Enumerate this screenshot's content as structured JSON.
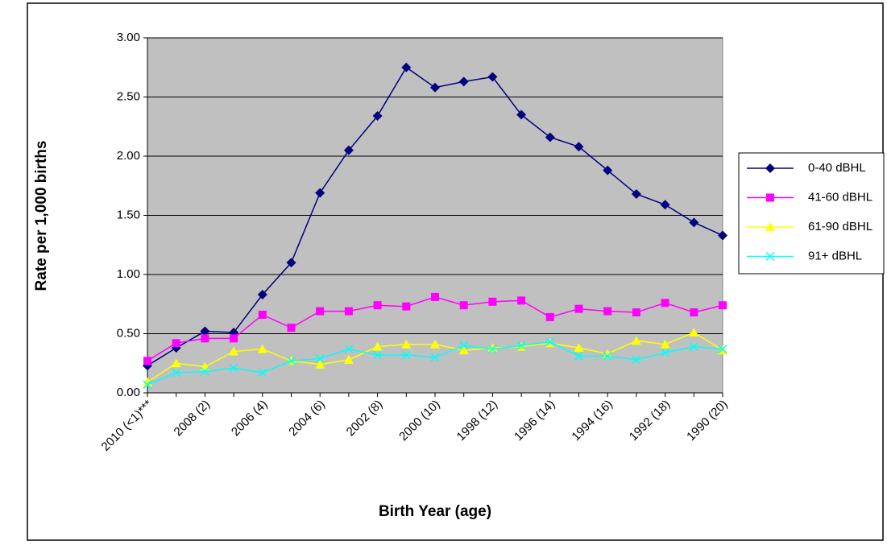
{
  "chart_data": {
    "type": "line",
    "x_label": "Birth Year (age)",
    "y_label": "Rate per 1,000 births",
    "categories": [
      "2010 (<1)***",
      null,
      "2008 (2)",
      null,
      "2006 (4)",
      null,
      "2004 (6)",
      null,
      "2002 (8)",
      null,
      "2000 (10)",
      null,
      "1998 (12)",
      null,
      "1996 (14)",
      null,
      "1994 (16)",
      null,
      "1992 (18)",
      null,
      "1990 (20)"
    ],
    "series": [
      {
        "name": "0-40 dBHL",
        "color": "#000080",
        "marker": "diamond",
        "values": [
          0.23,
          0.38,
          0.52,
          0.51,
          0.83,
          1.1,
          1.69,
          2.05,
          2.34,
          2.75,
          2.58,
          2.63,
          2.67,
          2.35,
          2.16,
          2.08,
          1.88,
          1.68,
          1.59,
          1.44,
          1.33
        ]
      },
      {
        "name": "41-60 dBHL",
        "color": "#FF00FF",
        "marker": "square",
        "values": [
          0.27,
          0.42,
          0.46,
          0.46,
          0.66,
          0.55,
          0.69,
          0.69,
          0.74,
          0.73,
          0.81,
          0.74,
          0.77,
          0.78,
          0.64,
          0.71,
          0.69,
          0.68,
          0.76,
          0.68,
          0.74
        ]
      },
      {
        "name": "61-90 dBHL",
        "color": "#FFFF00",
        "marker": "triangle",
        "values": [
          0.09,
          0.25,
          0.22,
          0.35,
          0.37,
          0.27,
          0.24,
          0.28,
          0.39,
          0.41,
          0.41,
          0.36,
          0.38,
          0.39,
          0.42,
          0.38,
          0.33,
          0.44,
          0.41,
          0.51,
          0.36
        ]
      },
      {
        "name": "91+ dBHL",
        "color": "#00FFFF",
        "marker": "x",
        "values": [
          0.07,
          0.17,
          0.18,
          0.21,
          0.17,
          0.27,
          0.29,
          0.37,
          0.32,
          0.32,
          0.3,
          0.4,
          0.37,
          0.4,
          0.43,
          0.31,
          0.31,
          0.28,
          0.34,
          0.39,
          0.37
        ]
      }
    ],
    "ylim": [
      0,
      3
    ],
    "yticks": [
      {
        "value": 0,
        "label": "0.00"
      },
      {
        "value": 0.5,
        "label": "0.50"
      },
      {
        "value": 1,
        "label": "1.00"
      },
      {
        "value": 1.5,
        "label": "1.50"
      },
      {
        "value": 2,
        "label": "2.00"
      },
      {
        "value": 2.5,
        "label": "2.50"
      },
      {
        "value": 3,
        "label": "3.00"
      }
    ],
    "grid": true,
    "plot_background": "#C0C0C0",
    "legend": "right"
  }
}
